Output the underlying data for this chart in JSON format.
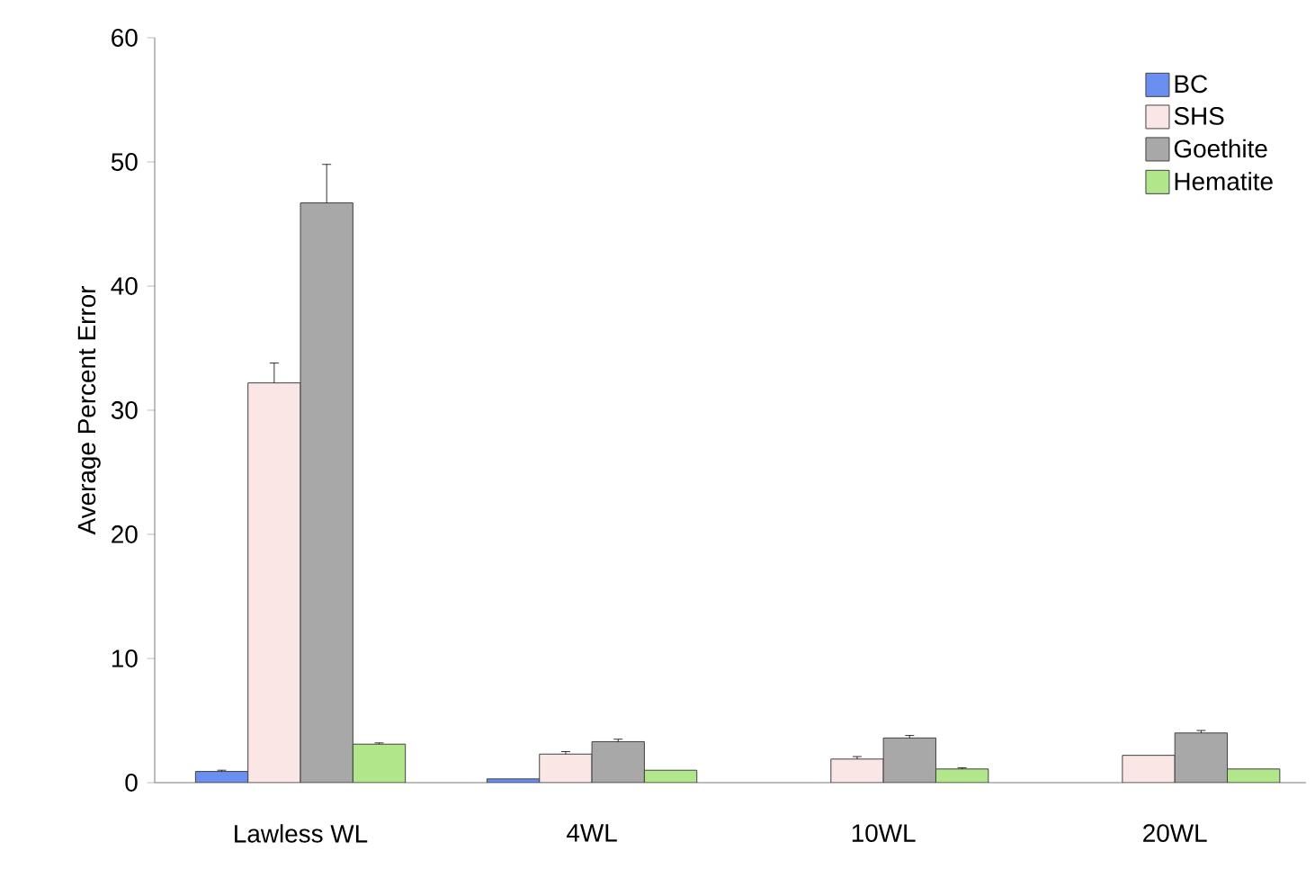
{
  "chart_data": {
    "type": "bar",
    "ylabel": "Average Percent Error",
    "categories": [
      "Lawless WL",
      "4WL",
      "10WL",
      "20WL"
    ],
    "series": [
      {
        "name": "BC",
        "color": "#6b8ff0",
        "values": [
          0.9,
          0.3,
          null,
          null
        ],
        "errors": [
          0.1,
          null,
          null,
          null
        ]
      },
      {
        "name": "SHS",
        "color": "#fbe6e6",
        "values": [
          32.2,
          2.3,
          1.9,
          2.2
        ],
        "errors": [
          1.6,
          0.2,
          0.2,
          null
        ]
      },
      {
        "name": "Goethite",
        "color": "#a8a8a8",
        "values": [
          46.7,
          3.3,
          3.6,
          4.0
        ],
        "errors": [
          3.1,
          0.2,
          0.2,
          0.2
        ]
      },
      {
        "name": "Hematite",
        "color": "#b2e68a",
        "values": [
          3.1,
          1.0,
          1.1,
          1.1
        ],
        "errors": [
          0.1,
          null,
          0.1,
          null
        ]
      }
    ],
    "ylim": [
      0,
      60
    ],
    "yticks": [
      0,
      10,
      20,
      30,
      40,
      50,
      60
    ],
    "legend": "top right",
    "grid": false
  }
}
